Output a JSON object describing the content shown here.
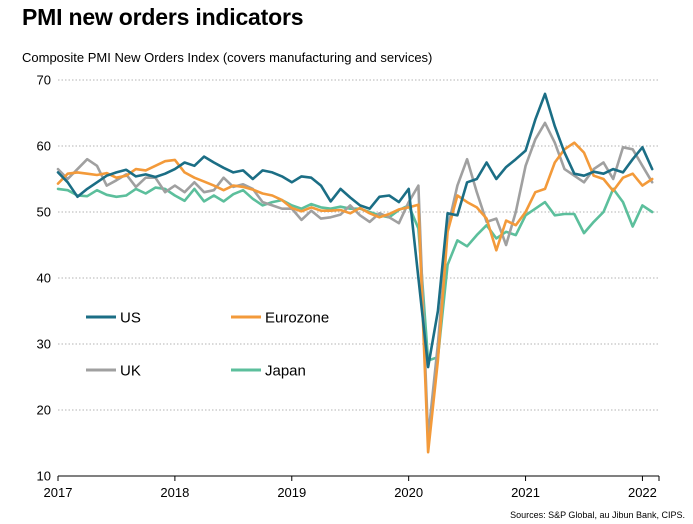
{
  "chart_data": {
    "type": "line",
    "title": "PMI new orders indicators",
    "subtitle": "Composite PMI New Orders Index (covers manufacturing and services)",
    "source": "Sources: S&P Global, au Jibun Bank, CIPS.",
    "x_start": "2017-01",
    "x_tick_labels": [
      "2017",
      "2018",
      "2019",
      "2020",
      "2021",
      "2022"
    ],
    "ylim": [
      10,
      70
    ],
    "y_ticks": [
      10,
      20,
      30,
      40,
      50,
      60,
      70
    ],
    "grid": "horizontal dotted",
    "legend": "inside, left-middle, 2 columns",
    "series": [
      {
        "name": "US",
        "color": "#1b6e85",
        "values": [
          56.0,
          54.5,
          52.3,
          53.5,
          54.5,
          55.5,
          56.0,
          56.4,
          55.4,
          55.7,
          55.3,
          55.8,
          56.5,
          57.5,
          57.0,
          58.4,
          57.5,
          56.7,
          56.0,
          56.3,
          55.0,
          56.3,
          56.0,
          55.4,
          54.5,
          55.4,
          55.2,
          54.0,
          51.6,
          53.5,
          52.2,
          51.0,
          50.5,
          52.3,
          52.5,
          51.5,
          53.5,
          40.0,
          26.5,
          35.0,
          49.8,
          49.5,
          54.5,
          55.0,
          57.5,
          55.0,
          56.8,
          58.0,
          59.3,
          64.0,
          67.9,
          63.0,
          59.0,
          55.8,
          55.5,
          56.1,
          55.8,
          56.5,
          56.0,
          58.0,
          59.8,
          56.5
        ]
      },
      {
        "name": "Eurozone",
        "color": "#f39a3a",
        "values": [
          54.3,
          55.8,
          56.0,
          55.8,
          55.6,
          55.9,
          55.2,
          55.5,
          56.5,
          56.3,
          57.0,
          57.7,
          57.9,
          56.0,
          55.2,
          54.6,
          54.0,
          53.3,
          54.0,
          53.8,
          53.4,
          52.8,
          52.5,
          51.8,
          50.6,
          50.1,
          50.7,
          50.2,
          50.2,
          50.3,
          49.8,
          50.6,
          49.8,
          49.2,
          49.7,
          50.4,
          50.7,
          51.1,
          13.6,
          27.5,
          47.0,
          52.5,
          51.5,
          50.7,
          49.0,
          44.2,
          48.7,
          48.0,
          50.0,
          53.0,
          53.5,
          57.5,
          59.5,
          60.5,
          59.0,
          55.5,
          55.0,
          53.2,
          55.2,
          55.8,
          54.0,
          55.0
        ]
      },
      {
        "name": "UK",
        "color": "#a0a0a0",
        "values": [
          56.5,
          55.0,
          56.5,
          58.0,
          57.0,
          54.0,
          54.8,
          55.7,
          53.8,
          55.2,
          55.2,
          53.0,
          54.0,
          53.0,
          54.5,
          53.0,
          53.3,
          55.2,
          53.8,
          54.2,
          53.5,
          51.5,
          51.0,
          50.5,
          50.5,
          48.8,
          50.2,
          49.0,
          49.2,
          49.6,
          51.0,
          49.5,
          48.5,
          49.8,
          49.2,
          48.3,
          51.5,
          54.0,
          15.8,
          30.0,
          47.5,
          54.0,
          58.0,
          53.0,
          48.5,
          49.0,
          45.0,
          50.0,
          57.0,
          61.0,
          63.5,
          60.5,
          56.5,
          55.5,
          54.5,
          56.5,
          57.5,
          55.0,
          59.8,
          59.5,
          57.0,
          54.5
        ]
      },
      {
        "name": "Japan",
        "color": "#5cbf9c",
        "values": [
          53.5,
          53.3,
          52.5,
          52.4,
          53.3,
          52.6,
          52.3,
          52.5,
          53.5,
          52.8,
          53.7,
          53.5,
          52.5,
          51.7,
          53.5,
          51.6,
          52.5,
          51.6,
          52.7,
          53.3,
          52.0,
          51.0,
          51.5,
          51.8,
          51.0,
          50.5,
          51.2,
          50.7,
          50.5,
          50.8,
          50.5,
          50.5,
          50.0,
          49.5,
          49.2,
          50.3,
          51.0,
          47.5,
          27.5,
          28.0,
          42.0,
          45.7,
          44.8,
          46.5,
          48.0,
          46.0,
          47.0,
          46.5,
          49.5,
          50.5,
          51.5,
          49.5,
          49.7,
          49.7,
          46.8,
          48.5,
          50.0,
          53.5,
          51.5,
          47.8,
          51.0,
          50.0
        ]
      }
    ]
  }
}
